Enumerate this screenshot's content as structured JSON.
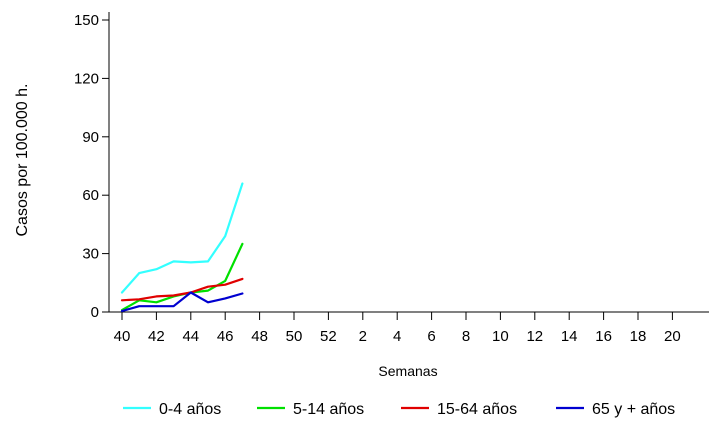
{
  "chart_data": {
    "type": "line",
    "x": [
      "40",
      "41",
      "42",
      "43",
      "44",
      "45",
      "46",
      "47"
    ],
    "x_tick_labels": [
      "40",
      "42",
      "44",
      "46",
      "48",
      "50",
      "52",
      "2",
      "4",
      "6",
      "8",
      "10",
      "12",
      "14",
      "16",
      "18",
      "20"
    ],
    "y_ticks": [
      0,
      30,
      60,
      90,
      120,
      150
    ],
    "ylim": [
      0,
      150
    ],
    "xlabel": "Semanas",
    "ylabel": "Casos por 100.000 h.",
    "title": "",
    "legend_position": "bottom",
    "series": [
      {
        "name": "0-4 años",
        "color": "#33FFFF",
        "values": [
          10,
          20,
          22,
          26,
          25.5,
          26,
          39,
          66
        ]
      },
      {
        "name": "5-14 años",
        "color": "#00E000",
        "values": [
          1,
          6,
          5,
          8,
          10,
          11,
          16,
          35
        ]
      },
      {
        "name": "15-64 años",
        "color": "#E00000",
        "values": [
          6,
          6.5,
          8,
          8.5,
          10,
          13,
          14,
          17
        ]
      },
      {
        "name": "65 y + años",
        "color": "#0000D0",
        "values": [
          0.5,
          3,
          3,
          3,
          10,
          5,
          7,
          9.5
        ]
      }
    ]
  }
}
